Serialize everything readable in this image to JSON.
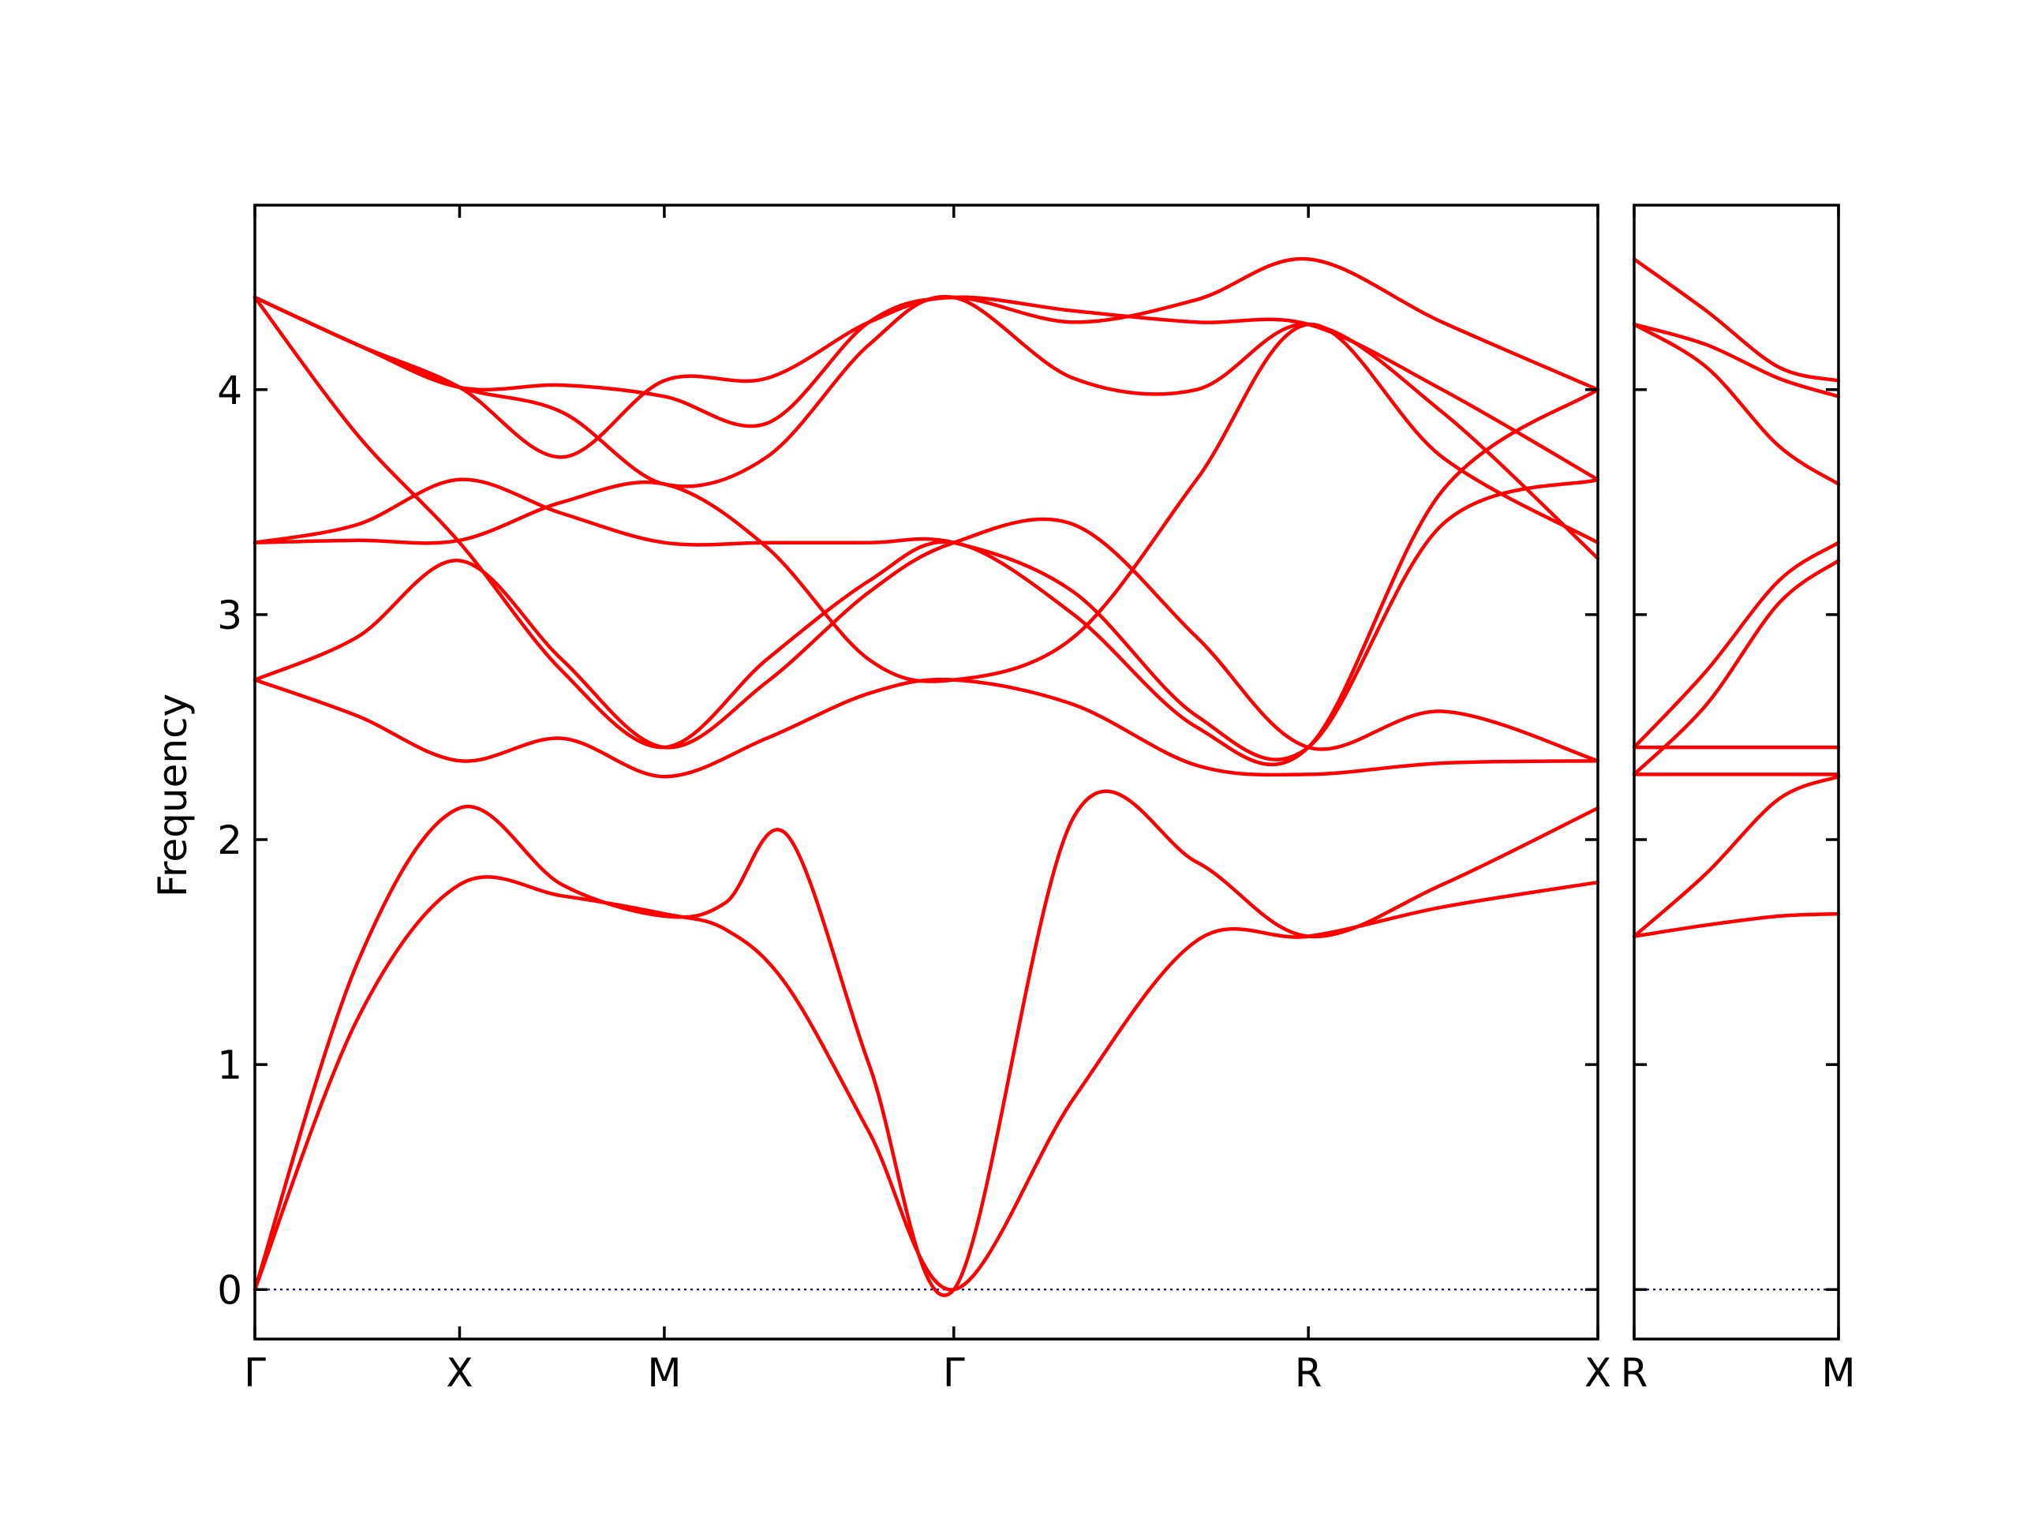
{
  "chart_data": {
    "type": "line",
    "ylabel": "Frequency",
    "ylim": [
      -0.22,
      4.82
    ],
    "yticks": [
      0,
      1,
      2,
      3,
      4
    ],
    "line_color": "#ff0000",
    "zero_line_color": "#0000aa",
    "grid": false,
    "legend": "none",
    "panels": [
      {
        "path_labels": [
          "Γ",
          "X",
          "M",
          "Γ",
          "R",
          "X"
        ],
        "label_positions": [
          0,
          1,
          2,
          3.414,
          5.146,
          6.56
        ],
        "xlim": [
          0,
          6.56
        ],
        "series": [
          {
            "name": "",
            "x": [
              0,
              0.5,
              1.0,
              1.5,
              2.0,
              2.3,
              2.6,
              3.0,
              3.414,
              4.0,
              4.6,
              5.146,
              5.8,
              6.56
            ],
            "y": [
              0,
              1.2,
              1.8,
              1.75,
              1.67,
              1.6,
              1.35,
              0.7,
              0,
              0.85,
              1.55,
              1.57,
              1.7,
              1.81
            ]
          },
          {
            "name": "",
            "x": [
              0,
              0.5,
              1.0,
              1.5,
              2.0,
              2.3,
              2.6,
              3.0,
              3.414,
              4.0,
              4.6,
              5.146,
              5.8,
              6.56
            ],
            "y": [
              0,
              1.45,
              2.14,
              1.8,
              1.66,
              1.72,
              2.02,
              1.0,
              0,
              2.1,
              1.9,
              1.57,
              1.8,
              2.14
            ]
          },
          {
            "name": "",
            "x": [
              0,
              0.5,
              1.0,
              1.5,
              2.0,
              2.5,
              3.0,
              3.414,
              4.0,
              4.6,
              5.146,
              5.8,
              6.56
            ],
            "y": [
              2.71,
              2.55,
              2.35,
              2.45,
              2.28,
              2.45,
              2.65,
              2.71,
              2.6,
              2.33,
              2.29,
              2.34,
              2.35
            ]
          },
          {
            "name": "",
            "x": [
              0,
              0.5,
              1.0,
              1.5,
              2.0,
              2.5,
              3.0,
              3.414,
              4.0,
              4.6,
              5.146,
              5.8,
              6.56
            ],
            "y": [
              2.71,
              2.9,
              3.24,
              2.8,
              2.41,
              2.7,
              3.1,
              3.32,
              3.4,
              2.9,
              2.41,
              2.57,
              2.35
            ]
          },
          {
            "name": "",
            "x": [
              0,
              0.5,
              1.0,
              1.5,
              2.0,
              2.5,
              3.0,
              3.414,
              4.0,
              4.6,
              5.146,
              5.8,
              6.56
            ],
            "y": [
              3.32,
              3.33,
              3.33,
              3.5,
              3.58,
              3.3,
              2.8,
              2.71,
              2.9,
              3.6,
              4.29,
              3.7,
              3.32
            ]
          },
          {
            "name": "",
            "x": [
              0,
              0.5,
              1.0,
              1.5,
              2.0,
              2.5,
              3.0,
              3.414,
              4.0,
              4.6,
              5.146,
              5.8,
              6.56
            ],
            "y": [
              3.32,
              3.4,
              3.6,
              3.45,
              3.32,
              3.32,
              3.32,
              3.32,
              3.1,
              2.55,
              2.41,
              3.4,
              3.6
            ]
          },
          {
            "name": "",
            "x": [
              0,
              0.5,
              1.0,
              1.5,
              2.0,
              2.5,
              3.0,
              3.414,
              4.0,
              4.6,
              5.146,
              5.8,
              6.56
            ],
            "y": [
              4.41,
              3.8,
              3.32,
              2.75,
              2.41,
              2.8,
              3.15,
              3.32,
              3.0,
              2.5,
              2.41,
              3.55,
              4.0
            ]
          },
          {
            "name": "",
            "x": [
              0,
              0.5,
              1.0,
              1.5,
              2.0,
              2.5,
              3.0,
              3.414,
              4.0,
              4.6,
              5.146,
              5.8,
              6.56
            ],
            "y": [
              4.41,
              4.2,
              4.01,
              3.9,
              3.58,
              3.7,
              4.2,
              4.41,
              4.05,
              4.0,
              4.29,
              3.9,
              3.25
            ]
          },
          {
            "name": "",
            "x": [
              0,
              0.5,
              1.0,
              1.5,
              2.0,
              2.5,
              3.0,
              3.414,
              4.0,
              4.6,
              5.146,
              5.8,
              6.56
            ],
            "y": [
              4.41,
              4.2,
              4.01,
              4.02,
              3.97,
              3.85,
              4.3,
              4.41,
              4.35,
              4.3,
              4.29,
              4.0,
              3.6
            ]
          },
          {
            "name": "",
            "x": [
              0,
              0.5,
              1.0,
              1.5,
              2.0,
              2.5,
              3.0,
              3.414,
              4.0,
              4.6,
              5.146,
              5.8,
              6.56
            ],
            "y": [
              4.41,
              4.2,
              4.01,
              3.7,
              4.04,
              4.05,
              4.3,
              4.41,
              4.3,
              4.4,
              4.58,
              4.3,
              4.0
            ]
          }
        ]
      },
      {
        "path_labels": [
          "R",
          "M"
        ],
        "label_positions": [
          0,
          1.414
        ],
        "xlim": [
          0,
          1.414
        ],
        "series": [
          {
            "name": "",
            "x": [
              0,
              0.5,
              1.0,
              1.414
            ],
            "y": [
              1.57,
              1.62,
              1.66,
              1.67
            ]
          },
          {
            "name": "",
            "x": [
              0,
              0.5,
              1.0,
              1.414
            ],
            "y": [
              1.57,
              1.85,
              2.18,
              2.28
            ]
          },
          {
            "name": "",
            "x": [
              0,
              0.5,
              1.0,
              1.414
            ],
            "y": [
              2.29,
              2.29,
              2.29,
              2.29
            ]
          },
          {
            "name": "",
            "x": [
              0,
              0.5,
              1.0,
              1.414
            ],
            "y": [
              2.41,
              2.41,
              2.41,
              2.41
            ]
          },
          {
            "name": "",
            "x": [
              0,
              0.5,
              1.0,
              1.414
            ],
            "y": [
              2.29,
              2.6,
              3.05,
              3.24
            ]
          },
          {
            "name": "",
            "x": [
              0,
              0.5,
              1.0,
              1.414
            ],
            "y": [
              2.41,
              2.75,
              3.15,
              3.32
            ]
          },
          {
            "name": "",
            "x": [
              0,
              0.5,
              1.0,
              1.414
            ],
            "y": [
              4.29,
              4.1,
              3.75,
              3.58
            ]
          },
          {
            "name": "",
            "x": [
              0,
              0.5,
              1.0,
              1.414
            ],
            "y": [
              4.29,
              4.2,
              4.05,
              3.97
            ]
          },
          {
            "name": "",
            "x": [
              0,
              0.5,
              1.0,
              1.414
            ],
            "y": [
              4.58,
              4.35,
              4.1,
              4.04
            ]
          }
        ]
      }
    ]
  }
}
